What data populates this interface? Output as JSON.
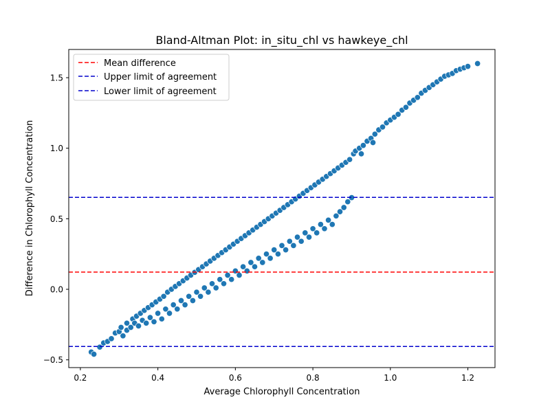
{
  "chart_data": {
    "type": "scatter",
    "title": "Bland-Altman Plot: in_situ_chl vs hawkeye_chl",
    "xlabel": "Average Chlorophyll Concentration",
    "ylabel": "Difference in Chlorophyll Concentration",
    "xlim": [
      0.17,
      1.27
    ],
    "ylim": [
      -0.555,
      1.7
    ],
    "xticks": [
      0.2,
      0.4,
      0.6,
      0.8,
      1.0,
      1.2
    ],
    "xtick_labels": [
      "0.2",
      "0.4",
      "0.6",
      "0.8",
      "1.0",
      "1.2"
    ],
    "yticks": [
      -0.5,
      0.0,
      0.5,
      1.0,
      1.5
    ],
    "ytick_labels": [
      "−0.5",
      "0.0",
      "0.5",
      "1.0",
      "1.5"
    ],
    "grid": false,
    "legend_position": "top-left",
    "point_color": "#1f77b4",
    "point_edge_color": "#ffffff",
    "lines": [
      {
        "name": "Mean difference",
        "y": 0.122,
        "color": "#ff0000",
        "style": "dashed"
      },
      {
        "name": "Upper limit of agreement",
        "y": 0.652,
        "color": "#0000cc",
        "style": "dashed"
      },
      {
        "name": "Lower limit of agreement",
        "y": -0.405,
        "color": "#0000cc",
        "style": "dashed"
      }
    ],
    "points": [
      [
        0.228,
        -0.445
      ],
      [
        0.235,
        -0.46
      ],
      [
        0.25,
        -0.41
      ],
      [
        0.26,
        -0.38
      ],
      [
        0.27,
        -0.37
      ],
      [
        0.28,
        -0.35
      ],
      [
        0.29,
        -0.31
      ],
      [
        0.3,
        -0.3
      ],
      [
        0.305,
        -0.27
      ],
      [
        0.31,
        -0.33
      ],
      [
        0.32,
        -0.29
      ],
      [
        0.32,
        -0.24
      ],
      [
        0.33,
        -0.27
      ],
      [
        0.335,
        -0.21
      ],
      [
        0.34,
        -0.24
      ],
      [
        0.345,
        -0.19
      ],
      [
        0.35,
        -0.26
      ],
      [
        0.355,
        -0.17
      ],
      [
        0.36,
        -0.22
      ],
      [
        0.365,
        -0.15
      ],
      [
        0.37,
        -0.24
      ],
      [
        0.375,
        -0.13
      ],
      [
        0.38,
        -0.2
      ],
      [
        0.385,
        -0.11
      ],
      [
        0.39,
        -0.23
      ],
      [
        0.395,
        -0.09
      ],
      [
        0.4,
        -0.17
      ],
      [
        0.405,
        -0.07
      ],
      [
        0.41,
        -0.21
      ],
      [
        0.415,
        -0.05
      ],
      [
        0.42,
        -0.14
      ],
      [
        0.425,
        -0.02
      ],
      [
        0.43,
        -0.17
      ],
      [
        0.435,
        0.0
      ],
      [
        0.44,
        -0.11
      ],
      [
        0.445,
        0.02
      ],
      [
        0.45,
        -0.14
      ],
      [
        0.455,
        0.04
      ],
      [
        0.46,
        -0.08
      ],
      [
        0.465,
        0.06
      ],
      [
        0.47,
        -0.11
      ],
      [
        0.475,
        0.08
      ],
      [
        0.48,
        -0.05
      ],
      [
        0.485,
        0.1
      ],
      [
        0.49,
        -0.08
      ],
      [
        0.495,
        0.12
      ],
      [
        0.5,
        -0.02
      ],
      [
        0.505,
        0.14
      ],
      [
        0.51,
        -0.05
      ],
      [
        0.515,
        0.16
      ],
      [
        0.52,
        0.01
      ],
      [
        0.525,
        0.18
      ],
      [
        0.53,
        -0.02
      ],
      [
        0.535,
        0.2
      ],
      [
        0.54,
        0.04
      ],
      [
        0.545,
        0.22
      ],
      [
        0.55,
        0.01
      ],
      [
        0.555,
        0.24
      ],
      [
        0.56,
        0.07
      ],
      [
        0.565,
        0.26
      ],
      [
        0.57,
        0.04
      ],
      [
        0.575,
        0.28
      ],
      [
        0.58,
        0.1
      ],
      [
        0.585,
        0.3
      ],
      [
        0.59,
        0.07
      ],
      [
        0.595,
        0.32
      ],
      [
        0.6,
        0.13
      ],
      [
        0.605,
        0.34
      ],
      [
        0.61,
        0.1
      ],
      [
        0.615,
        0.36
      ],
      [
        0.62,
        0.16
      ],
      [
        0.625,
        0.38
      ],
      [
        0.63,
        0.13
      ],
      [
        0.635,
        0.4
      ],
      [
        0.64,
        0.19
      ],
      [
        0.645,
        0.42
      ],
      [
        0.65,
        0.16
      ],
      [
        0.655,
        0.44
      ],
      [
        0.66,
        0.22
      ],
      [
        0.665,
        0.46
      ],
      [
        0.67,
        0.19
      ],
      [
        0.675,
        0.48
      ],
      [
        0.68,
        0.25
      ],
      [
        0.685,
        0.5
      ],
      [
        0.69,
        0.22
      ],
      [
        0.695,
        0.52
      ],
      [
        0.7,
        0.28
      ],
      [
        0.705,
        0.54
      ],
      [
        0.71,
        0.25
      ],
      [
        0.715,
        0.56
      ],
      [
        0.72,
        0.31
      ],
      [
        0.725,
        0.58
      ],
      [
        0.73,
        0.28
      ],
      [
        0.735,
        0.6
      ],
      [
        0.74,
        0.34
      ],
      [
        0.745,
        0.62
      ],
      [
        0.75,
        0.31
      ],
      [
        0.755,
        0.64
      ],
      [
        0.76,
        0.37
      ],
      [
        0.765,
        0.66
      ],
      [
        0.77,
        0.34
      ],
      [
        0.775,
        0.68
      ],
      [
        0.78,
        0.4
      ],
      [
        0.785,
        0.7
      ],
      [
        0.79,
        0.37
      ],
      [
        0.795,
        0.72
      ],
      [
        0.8,
        0.43
      ],
      [
        0.805,
        0.74
      ],
      [
        0.81,
        0.4
      ],
      [
        0.815,
        0.76
      ],
      [
        0.82,
        0.46
      ],
      [
        0.825,
        0.78
      ],
      [
        0.83,
        0.43
      ],
      [
        0.835,
        0.8
      ],
      [
        0.84,
        0.49
      ],
      [
        0.845,
        0.82
      ],
      [
        0.85,
        0.46
      ],
      [
        0.855,
        0.84
      ],
      [
        0.86,
        0.52
      ],
      [
        0.865,
        0.86
      ],
      [
        0.87,
        0.55
      ],
      [
        0.875,
        0.88
      ],
      [
        0.88,
        0.58
      ],
      [
        0.885,
        0.9
      ],
      [
        0.89,
        0.62
      ],
      [
        0.895,
        0.92
      ],
      [
        0.9,
        0.65
      ],
      [
        0.905,
        0.96
      ],
      [
        0.91,
        0.98
      ],
      [
        0.92,
        1.0
      ],
      [
        0.925,
        0.96
      ],
      [
        0.93,
        1.02
      ],
      [
        0.94,
        1.05
      ],
      [
        0.95,
        1.07
      ],
      [
        0.955,
        1.04
      ],
      [
        0.96,
        1.1
      ],
      [
        0.97,
        1.13
      ],
      [
        0.98,
        1.15
      ],
      [
        0.99,
        1.18
      ],
      [
        1.0,
        1.2
      ],
      [
        1.01,
        1.22
      ],
      [
        1.02,
        1.24
      ],
      [
        1.03,
        1.27
      ],
      [
        1.04,
        1.29
      ],
      [
        1.05,
        1.32
      ],
      [
        1.06,
        1.34
      ],
      [
        1.07,
        1.36
      ],
      [
        1.08,
        1.39
      ],
      [
        1.09,
        1.41
      ],
      [
        1.1,
        1.43
      ],
      [
        1.11,
        1.45
      ],
      [
        1.12,
        1.47
      ],
      [
        1.13,
        1.49
      ],
      [
        1.14,
        1.51
      ],
      [
        1.15,
        1.52
      ],
      [
        1.16,
        1.53
      ],
      [
        1.17,
        1.55
      ],
      [
        1.18,
        1.56
      ],
      [
        1.19,
        1.57
      ],
      [
        1.2,
        1.58
      ],
      [
        1.225,
        1.6
      ]
    ]
  }
}
